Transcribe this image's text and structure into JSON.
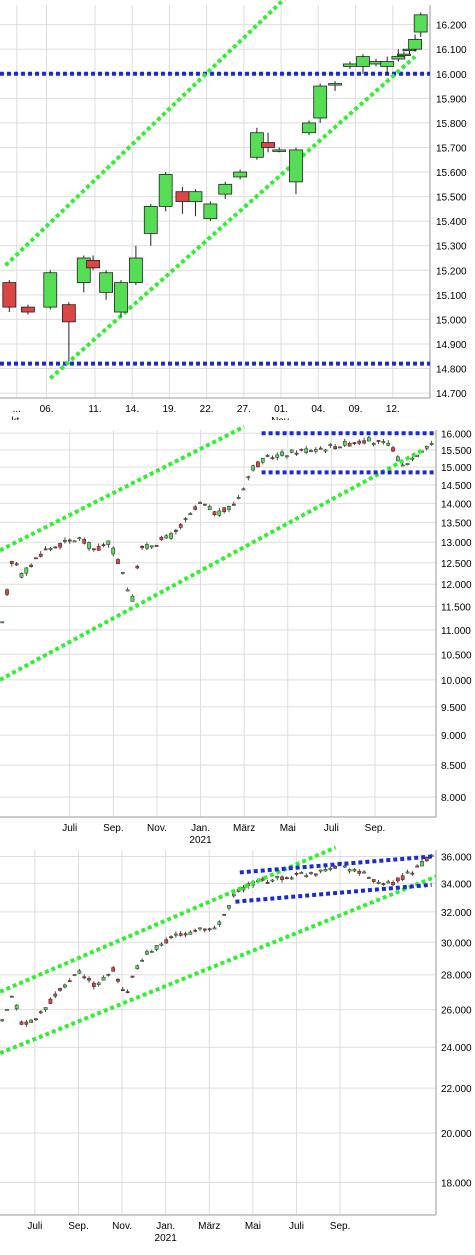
{
  "colors": {
    "up": "#55dd55",
    "down": "#dd4444",
    "channel": "#33ee33",
    "support": "#1a2ad6",
    "grid": "#dddddd",
    "candle_outline": "#222222"
  },
  "chart_data": [
    {
      "type": "candlestick",
      "title": "",
      "ylim": [
        14680,
        16280
      ],
      "y_ticks": [
        "14.700",
        "14.800",
        "14.900",
        "15.000",
        "15.100",
        "15.200",
        "15.300",
        "15.400",
        "15.500",
        "15.600",
        "15.700",
        "15.800",
        "15.900",
        "16.000",
        "16.100",
        "16.200"
      ],
      "y_tick_values": [
        14700,
        14800,
        14900,
        15000,
        15100,
        15200,
        15300,
        15400,
        15500,
        15600,
        15700,
        15800,
        15900,
        16000,
        16100,
        16200
      ],
      "x_index_range": [
        -1.2,
        20.2
      ],
      "x_ticks": [
        {
          "i": -0.6,
          "label": "..."
        },
        {
          "i": 1,
          "label": "06."
        },
        {
          "i": 3.6,
          "label": "11."
        },
        {
          "i": 5.6,
          "label": "14."
        },
        {
          "i": 7.6,
          "label": "19."
        },
        {
          "i": 9.6,
          "label": "22."
        },
        {
          "i": 11.6,
          "label": "27."
        },
        {
          "i": 13.6,
          "label": "01."
        },
        {
          "i": 15.6,
          "label": "04."
        },
        {
          "i": 17.6,
          "label": "09."
        },
        {
          "i": 19.6,
          "label": "12."
        }
      ],
      "x_sublabels": [
        {
          "i": -0.6,
          "label": "kt."
        },
        {
          "i": 13.6,
          "label": "Nov."
        }
      ],
      "candles": [
        {
          "o": 15150,
          "h": 15160,
          "l": 15030,
          "c": 15050
        },
        {
          "o": 15050,
          "h": 15060,
          "l": 15020,
          "c": 15030
        },
        {
          "o": 15050,
          "h": 15200,
          "l": 15040,
          "c": 15190
        },
        {
          "o": 15060,
          "h": 15070,
          "l": 14830,
          "c": 14990
        },
        {
          "o": 15150,
          "h": 15260,
          "l": 15110,
          "c": 15250
        },
        {
          "o": 15240,
          "h": 15260,
          "l": 15200,
          "c": 15210
        },
        {
          "o": 15110,
          "h": 15200,
          "l": 15080,
          "c": 15190
        },
        {
          "o": 15030,
          "h": 15160,
          "l": 15010,
          "c": 15150
        },
        {
          "o": 15150,
          "h": 15300,
          "l": 15140,
          "c": 15250
        },
        {
          "o": 15350,
          "h": 15470,
          "l": 15300,
          "c": 15460
        },
        {
          "o": 15460,
          "h": 15600,
          "l": 15440,
          "c": 15590
        },
        {
          "o": 15520,
          "h": 15540,
          "l": 15430,
          "c": 15480
        },
        {
          "o": 15480,
          "h": 15530,
          "l": 15420,
          "c": 15520
        },
        {
          "o": 15410,
          "h": 15480,
          "l": 15400,
          "c": 15470
        },
        {
          "o": 15510,
          "h": 15560,
          "l": 15490,
          "c": 15550
        },
        {
          "o": 15580,
          "h": 15610,
          "l": 15570,
          "c": 15600
        },
        {
          "o": 15660,
          "h": 15780,
          "l": 15650,
          "c": 15760
        },
        {
          "o": 15720,
          "h": 15760,
          "l": 15680,
          "c": 15700
        },
        {
          "o": 15690,
          "h": 15700,
          "l": 15680,
          "c": 15690
        },
        {
          "o": 15560,
          "h": 15700,
          "l": 15510,
          "c": 15690
        },
        {
          "o": 15760,
          "h": 15810,
          "l": 15750,
          "c": 15800
        },
        {
          "o": 15820,
          "h": 15960,
          "l": 15800,
          "c": 15950
        },
        {
          "o": 15960,
          "h": 15970,
          "l": 15930,
          "c": 15960
        },
        {
          "o": 16030,
          "h": 16050,
          "l": 16020,
          "c": 16040
        },
        {
          "o": 16030,
          "h": 16080,
          "l": 16000,
          "c": 16070
        },
        {
          "o": 16040,
          "h": 16060,
          "l": 16030,
          "c": 16050
        },
        {
          "o": 16030,
          "h": 16070,
          "l": 16000,
          "c": 16050
        },
        {
          "o": 16060,
          "h": 16100,
          "l": 16050,
          "c": 16070
        },
        {
          "o": 16080,
          "h": 16090,
          "l": 16070,
          "c": 16080
        },
        {
          "o": 16100,
          "h": 16110,
          "l": 16080,
          "c": 16100
        },
        {
          "o": 16100,
          "h": 16160,
          "l": 16090,
          "c": 16140
        },
        {
          "o": 16170,
          "h": 16250,
          "l": 16150,
          "c": 16240
        }
      ],
      "candle_x": [
        -1,
        0,
        1.2,
        2.2,
        3,
        3.5,
        4.2,
        5,
        5.8,
        6.6,
        7.4,
        8.3,
        9,
        9.8,
        10.6,
        11.4,
        12.3,
        12.9,
        13.5,
        14.4,
        15.1,
        15.7,
        16.5,
        17.3,
        18,
        18.7,
        19.3,
        19.9,
        20.2,
        20.5,
        20.8,
        21.1
      ],
      "channel_upper": [
        {
          "i": -1.2,
          "v": 15220
        },
        {
          "i": 20.2,
          "v": 16770
        }
      ],
      "channel_lower": [
        {
          "i": 1.2,
          "v": 14760
        },
        {
          "i": 20.8,
          "v": 16070
        }
      ],
      "hlines": [
        16000,
        14820
      ]
    },
    {
      "type": "candlestick",
      "title": "",
      "ylim": [
        7700,
        16100
      ],
      "y_scale": "log",
      "y_ticks": [
        "16.000",
        "15.500",
        "15.000",
        "14.500",
        "14.000",
        "13.500",
        "13.000",
        "12.500",
        "12.000",
        "11.500",
        "11.000",
        "10.500",
        "10.000",
        "9.500",
        "9.000",
        "8.500",
        "8.000"
      ],
      "y_tick_values": [
        16000,
        15500,
        15000,
        14500,
        14000,
        13500,
        13000,
        12500,
        12000,
        11500,
        11000,
        10500,
        10000,
        9500,
        9000,
        8500,
        8000
      ],
      "x_ticks": [
        {
          "t": 0.16,
          "label": "Juli"
        },
        {
          "t": 0.26,
          "label": "Sep."
        },
        {
          "t": 0.36,
          "label": "Nov."
        },
        {
          "t": 0.46,
          "label": "Jan."
        },
        {
          "t": 0.56,
          "label": "März"
        },
        {
          "t": 0.66,
          "label": "Mai"
        },
        {
          "t": 0.76,
          "label": "Juli"
        },
        {
          "t": 0.86,
          "label": "Sep."
        }
      ],
      "x_sublabels": [
        {
          "t": 0.46,
          "label": "2021"
        }
      ],
      "hlines": [
        16000,
        14850
      ],
      "channel_upper": [
        {
          "t": 0.0,
          "v": 12800
        },
        {
          "t": 0.56,
          "v": 16200
        }
      ],
      "channel_lower": [
        {
          "t": 0.0,
          "v": 10000
        },
        {
          "t": 0.97,
          "v": 15500
        }
      ]
    },
    {
      "type": "candlestick",
      "title": "",
      "ylim": [
        16800,
        36500
      ],
      "y_scale": "log",
      "y_ticks": [
        "36.000",
        "34.000",
        "32.000",
        "30.000",
        "28.000",
        "26.000",
        "24.000",
        "22.000",
        "20.000",
        "18.000"
      ],
      "y_tick_values": [
        36000,
        34000,
        32000,
        30000,
        28000,
        26000,
        24000,
        22000,
        20000,
        18000
      ],
      "x_ticks": [
        {
          "t": 0.08,
          "label": "Juli"
        },
        {
          "t": 0.18,
          "label": "Sep."
        },
        {
          "t": 0.28,
          "label": "Nov."
        },
        {
          "t": 0.38,
          "label": "Jan."
        },
        {
          "t": 0.48,
          "label": "März"
        },
        {
          "t": 0.58,
          "label": "Mai"
        },
        {
          "t": 0.68,
          "label": "Juli"
        },
        {
          "t": 0.78,
          "label": "Sep."
        }
      ],
      "x_sublabels": [
        {
          "t": 0.38,
          "label": "2021"
        }
      ],
      "channel_upper": [
        {
          "t": 0.0,
          "v": 27000
        },
        {
          "t": 0.77,
          "v": 36700
        }
      ],
      "channel_lower": [
        {
          "t": 0.0,
          "v": 23700
        },
        {
          "t": 1.0,
          "v": 34500
        }
      ],
      "trend_upper_blue": [
        {
          "t": 0.55,
          "v": 34800
        },
        {
          "t": 0.99,
          "v": 36000
        }
      ],
      "trend_lower_blue": [
        {
          "t": 0.54,
          "v": 32700
        },
        {
          "t": 0.99,
          "v": 33900
        }
      ]
    }
  ]
}
